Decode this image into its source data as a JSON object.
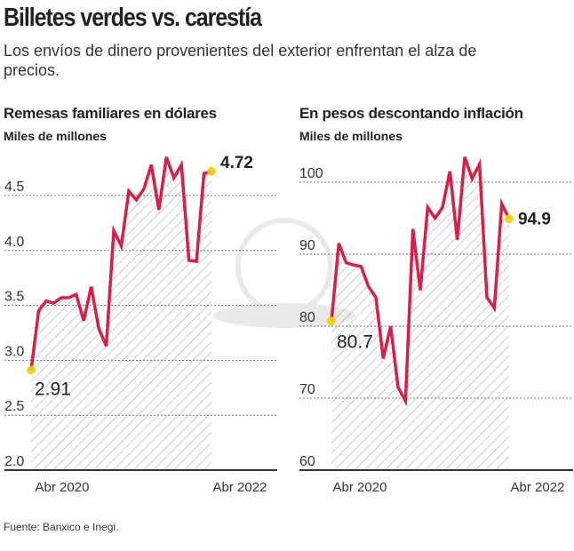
{
  "header": {
    "title": "Billetes verdes vs. carestía",
    "subtitle": "Los envíos de dinero provenientes del exterior enfrentan el alza de precios."
  },
  "source": "Fuente: Banxico e Inegi.",
  "colors": {
    "line": "#d91e48",
    "marker": "#f5d000",
    "grid": "#777777",
    "hatch": "#999999"
  },
  "chart_data": [
    {
      "type": "area",
      "title": "Remesas familiares en dólares",
      "ylabel": "Miles de millones",
      "ylim": [
        2.0,
        4.9
      ],
      "yticks": [
        "2.0",
        "2.5",
        "3.0",
        "3.5",
        "4.0",
        "4.5"
      ],
      "ytick_values": [
        2.0,
        2.5,
        3.0,
        3.5,
        4.0,
        4.5
      ],
      "xticks": [
        "Abr 2020",
        "Abr 2022"
      ],
      "grid": true,
      "values": [
        2.91,
        3.45,
        3.54,
        3.52,
        3.57,
        3.57,
        3.6,
        3.36,
        3.67,
        3.29,
        3.13,
        4.18,
        4.04,
        4.54,
        4.46,
        4.56,
        4.78,
        4.37,
        4.85,
        4.66,
        4.78,
        3.91,
        3.9,
        4.7,
        4.72
      ],
      "start_label": "2.91",
      "end_label": "4.72"
    },
    {
      "type": "area",
      "title": "En pesos descontando inflación",
      "ylabel": "Miles de millones",
      "ylim": [
        60,
        104
      ],
      "yticks": [
        "60",
        "70",
        "80",
        "90",
        "100"
      ],
      "ytick_values": [
        60,
        70,
        80,
        90,
        100
      ],
      "xticks": [
        "Abr 2020",
        "Abr 2022"
      ],
      "grid": true,
      "values": [
        80.7,
        91.5,
        88.8,
        88.5,
        88.3,
        85.5,
        84,
        75.5,
        80,
        71.5,
        69.6,
        93.5,
        85,
        96.5,
        95,
        96.5,
        101.5,
        92,
        103.5,
        100.5,
        102.5,
        84,
        82.5,
        97,
        94.9
      ],
      "start_label": "80.7",
      "end_label": "94.9"
    }
  ]
}
